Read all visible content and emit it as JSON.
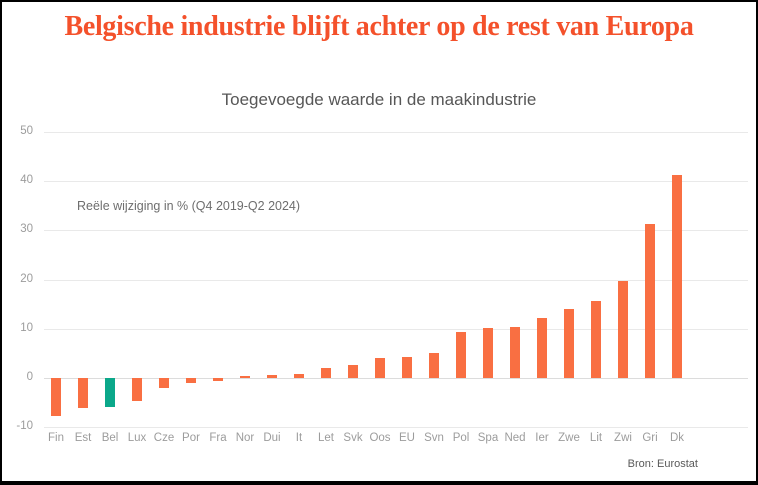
{
  "header": {
    "title": "Belgische industrie blijft achter op de rest van Europa",
    "subtitle": "Toegevoegde waarde in de maakindustrie"
  },
  "annotation": "Reële wijziging in % (Q4 2019-Q2 2024)",
  "source": "Bron: Eurostat",
  "colors": {
    "title": "#f4512b",
    "bar": "#f96f42",
    "highlight": "#0ba88a",
    "gridline": "#e9e9e9",
    "axis_text": "#9c9c9c"
  },
  "chart_data": {
    "type": "bar",
    "title": "Belgische industrie blijft achter op de rest van Europa",
    "subtitle": "Toegevoegde waarde in de maakindustrie",
    "annotation": "Reële wijziging in % (Q4 2019-Q2 2024)",
    "source": "Bron: Eurostat",
    "categories": [
      "Fin",
      "Est",
      "Bel",
      "Lux",
      "Cze",
      "Por",
      "Fra",
      "Nor",
      "Dui",
      "It",
      "Let",
      "Svk",
      "Oos",
      "EU",
      "Svn",
      "Pol",
      "Spa",
      "Ned",
      "Ier",
      "Zwe",
      "Lit",
      "Zwi",
      "Gri",
      "Dk"
    ],
    "values": [
      -7.7,
      -6.0,
      -5.9,
      -4.7,
      -2.1,
      -1.0,
      -0.7,
      0.5,
      0.6,
      0.8,
      2.1,
      2.7,
      4.1,
      4.3,
      5.1,
      9.3,
      10.2,
      10.4,
      12.2,
      14.1,
      15.6,
      19.8,
      31.3,
      41.3
    ],
    "highlight_index": 2,
    "highlight_category": "Bel",
    "ylabel": "Reële wijziging in %",
    "xlabel": "",
    "ylim": [
      -10,
      50
    ],
    "yticks": [
      50,
      40,
      30,
      20,
      10,
      0,
      -10
    ],
    "grid": true,
    "legend": false
  }
}
